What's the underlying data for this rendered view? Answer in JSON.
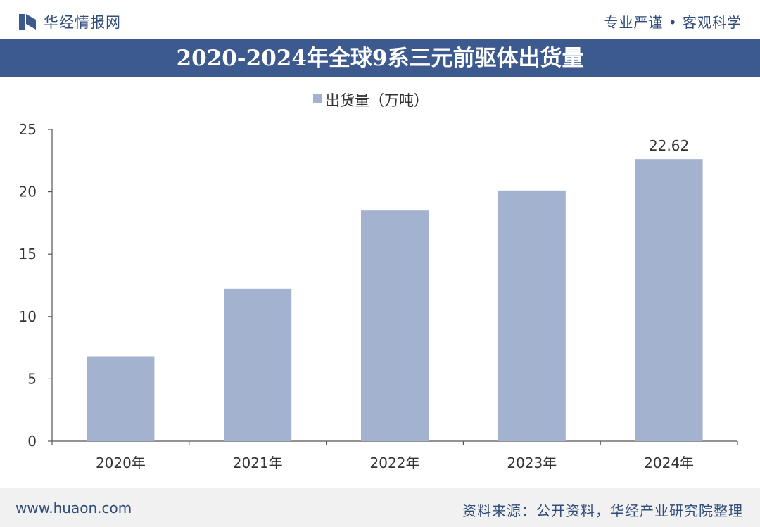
{
  "header": {
    "brand_name": "华经情报网",
    "slogan": "专业严谨 • 客观科学"
  },
  "footer": {
    "url": "www.huaon.com",
    "source": "资料来源：公开资料，华经产业研究院整理"
  },
  "colors": {
    "bar": "#a3b2ce",
    "title_band": "#3d5a8f",
    "brand_text": "#2f4c7a"
  },
  "chart_data": {
    "type": "bar",
    "title": "2020-2024年全球9系三元前驱体出货量",
    "categories": [
      "2020年",
      "2021年",
      "2022年",
      "2023年",
      "2024年"
    ],
    "series": [
      {
        "name": "出货量（万吨）",
        "values": [
          6.8,
          12.2,
          18.5,
          20.1,
          22.62
        ]
      }
    ],
    "data_labels": [
      "",
      "",
      "",
      "",
      "22.62"
    ],
    "yticks": [
      0,
      5,
      10,
      15,
      20,
      25
    ],
    "ylim": [
      0,
      25
    ],
    "legend_position": "top-center",
    "grid": false
  }
}
